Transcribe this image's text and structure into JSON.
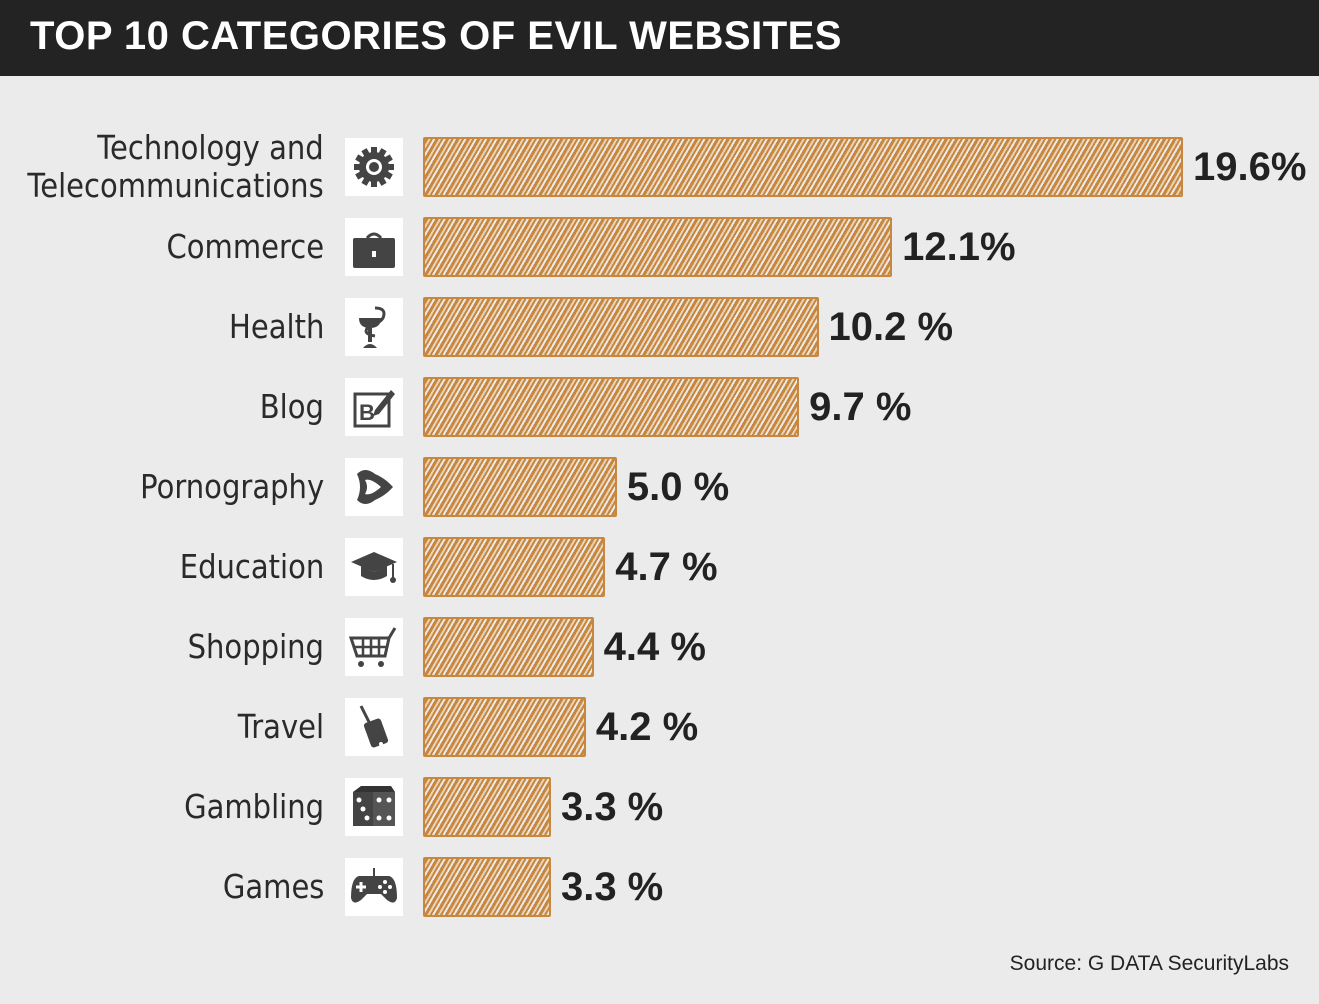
{
  "title": "TOP 10 CATEGORIES OF EVIL WEBSITES",
  "source": "Source: G DATA SecurityLabs",
  "chart_data": {
    "type": "bar",
    "orientation": "horizontal",
    "title": "TOP 10 CATEGORIES OF EVIL WEBSITES",
    "categories": [
      "Technology and\nTelecommunications",
      "Commerce",
      "Health",
      "Blog",
      "Pornography",
      "Education",
      "Shopping",
      "Travel",
      "Gambling",
      "Games"
    ],
    "values": [
      19.6,
      12.1,
      10.2,
      9.7,
      5.0,
      4.7,
      4.4,
      4.2,
      3.3,
      3.3
    ],
    "value_labels": [
      "19.6%",
      "12.1%",
      "10.2 %",
      "9.7 %",
      "5.0 %",
      "4.7 %",
      "4.4 %",
      "4.2 %",
      "3.3 %",
      "3.3 %"
    ],
    "icons": [
      "gear-icon",
      "briefcase-icon",
      "caduceus-icon",
      "blog-edit-icon",
      "lips-icon",
      "graduation-cap-icon",
      "shopping-cart-icon",
      "luggage-icon",
      "dice-icon",
      "gamepad-icon"
    ],
    "unit": "%",
    "grid": false,
    "bar_color": "#c8873e",
    "header_color": "#232323",
    "background_color": "#ebebeb"
  }
}
